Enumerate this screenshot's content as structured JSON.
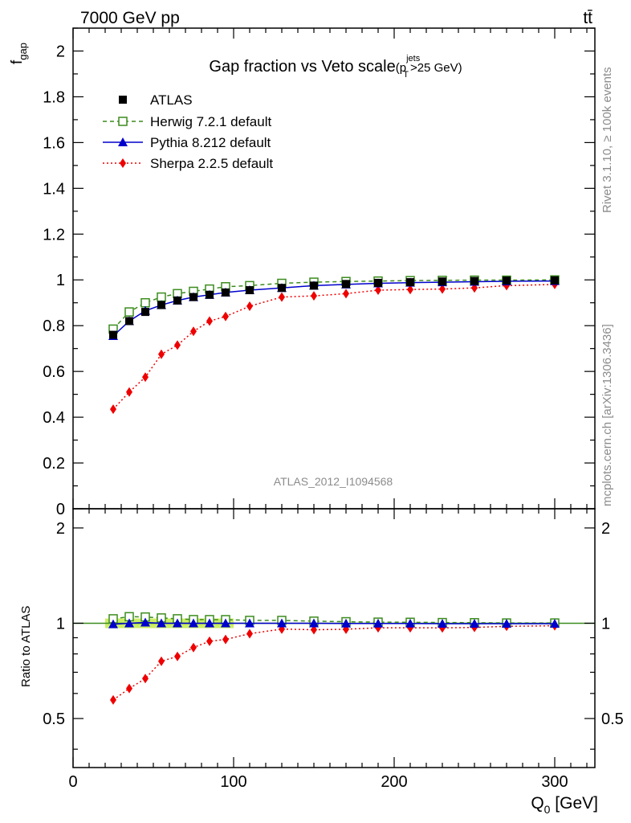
{
  "header": {
    "energy_label": "7000 GeV pp",
    "process_label": "tt̄",
    "side_rivet": "Rivet 3.1.10, ≥ 100k events",
    "side_mcplots": "mcplots.cern.ch [arXiv:1306.3436]",
    "watermark": "ATLAS_2012_I1094568"
  },
  "chart_data": {
    "type": "line",
    "title_main": "Gap fraction vs Veto scale",
    "title_cut_open": "(p",
    "title_cut_sup": "jets",
    "title_cut_sub": "T",
    "title_cut_close": ">25 GeV)",
    "ylabel_main_base": "f",
    "ylabel_main_sub": "gap",
    "ylabel_ratio": "Ratio to ATLAS",
    "xlabel_base": "Q",
    "xlabel_sub": "0",
    "xlabel_unit": " [GeV]",
    "xlim": [
      0,
      325
    ],
    "ylim_main": [
      0,
      2.1
    ],
    "ylim_ratio": [
      0.35,
      2.3
    ],
    "x_ticks": [
      0,
      100,
      200,
      300
    ],
    "x_tick_labels": [
      "0",
      "100",
      "200",
      "300"
    ],
    "y_ticks_main": [
      0,
      0.2,
      0.4,
      0.6,
      0.8,
      1,
      1.2,
      1.4,
      1.6,
      1.8,
      2
    ],
    "y_tick_labels_main": [
      "0",
      "0.2",
      "0.4",
      "0.6",
      "0.8",
      "1",
      "1.2",
      "1.4",
      "1.6",
      "1.8",
      "2"
    ],
    "y_ticks_ratio": [
      0.5,
      1,
      2
    ],
    "y_tick_labels_ratio": [
      "0.5",
      "1",
      "2"
    ],
    "legend_position": "top-left",
    "x": [
      25,
      35,
      45,
      55,
      65,
      75,
      85,
      95,
      110,
      130,
      150,
      170,
      190,
      210,
      230,
      250,
      270,
      300
    ],
    "series": [
      {
        "name": "ATLAS",
        "marker": "filled-square",
        "color": "#000000",
        "values": [
          0.76,
          0.82,
          0.86,
          0.89,
          0.91,
          0.925,
          0.935,
          0.945,
          0.955,
          0.965,
          0.975,
          0.982,
          0.987,
          0.99,
          0.993,
          0.995,
          0.997,
          0.998
        ]
      },
      {
        "name": "Herwig 7.2.1 default",
        "marker": "open-square",
        "line": "dashed",
        "color": "#3c8c1e",
        "values": [
          0.785,
          0.86,
          0.9,
          0.925,
          0.94,
          0.95,
          0.96,
          0.97,
          0.975,
          0.985,
          0.99,
          0.993,
          0.995,
          0.997,
          0.998,
          0.999,
          0.999,
          1.0
        ]
      },
      {
        "name": "Pythia 8.212 default",
        "marker": "filled-triangle",
        "line": "solid",
        "color": "#0000cc",
        "values": [
          0.755,
          0.82,
          0.865,
          0.89,
          0.91,
          0.925,
          0.935,
          0.945,
          0.955,
          0.965,
          0.975,
          0.98,
          0.985,
          0.988,
          0.99,
          0.992,
          0.994,
          0.995
        ]
      },
      {
        "name": "Sherpa 2.2.5 default",
        "marker": "filled-diamond",
        "line": "dotted",
        "color": "#ee0000",
        "values": [
          0.435,
          0.51,
          0.575,
          0.675,
          0.715,
          0.775,
          0.82,
          0.84,
          0.885,
          0.925,
          0.93,
          0.94,
          0.955,
          0.958,
          0.96,
          0.965,
          0.975,
          0.98
        ]
      }
    ],
    "ratio_band": {
      "color": "#ccee66",
      "x_range": [
        20,
        100
      ],
      "half_width": 0.035
    }
  }
}
